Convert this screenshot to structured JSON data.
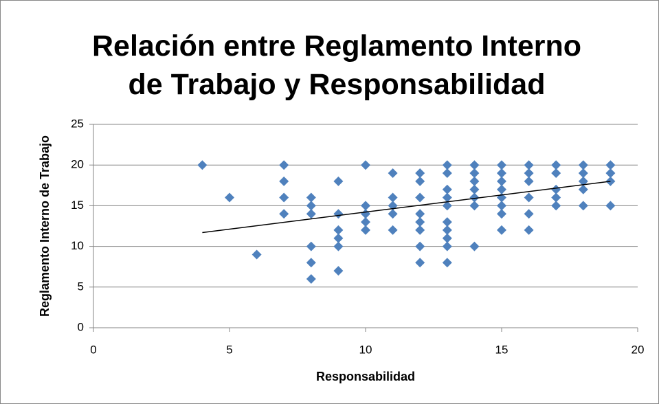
{
  "chart_data": {
    "type": "scatter",
    "title": [
      "Relación entre Reglamento Interno",
      "de Trabajo y Responsabilidad"
    ],
    "x_label": "Responsabilidad",
    "y_label": "Reglamento Interno de Trabajo",
    "color": "#4f81bd",
    "x": [
      4,
      5,
      6,
      7,
      7,
      7,
      7,
      8,
      8,
      8,
      8,
      8,
      8,
      9,
      9,
      9,
      9,
      9,
      9,
      10,
      10,
      10,
      10,
      10,
      11,
      11,
      11,
      11,
      11,
      12,
      12,
      12,
      12,
      12,
      12,
      12,
      12,
      13,
      13,
      13,
      13,
      13,
      13,
      13,
      13,
      13,
      13,
      14,
      14,
      14,
      14,
      14,
      14,
      14,
      15,
      15,
      15,
      15,
      15,
      15,
      15,
      15,
      16,
      16,
      16,
      16,
      16,
      16,
      17,
      17,
      17,
      17,
      17,
      18,
      18,
      18,
      18,
      18,
      19,
      19,
      19,
      19
    ],
    "y": [
      20,
      16,
      9,
      20,
      18,
      16,
      14,
      16,
      15,
      14,
      10,
      8,
      6,
      18,
      14,
      12,
      11,
      10,
      7,
      20,
      15,
      14,
      13,
      12,
      19,
      16,
      15,
      14,
      12,
      19,
      18,
      16,
      14,
      13,
      12,
      10,
      8,
      20,
      19,
      17,
      16,
      15,
      13,
      12,
      11,
      10,
      8,
      20,
      19,
      18,
      17,
      16,
      15,
      10,
      20,
      19,
      18,
      17,
      16,
      15,
      14,
      12,
      20,
      19,
      18,
      16,
      14,
      12,
      20,
      19,
      17,
      16,
      15,
      20,
      19,
      18,
      17,
      15,
      20,
      19,
      18,
      15
    ],
    "trendline": {
      "color": "#000000",
      "x": [
        4,
        19
      ],
      "y": [
        11.7,
        18
      ]
    },
    "xlim": [
      0,
      20
    ],
    "xticks": [
      0,
      5,
      10,
      15,
      20
    ],
    "ylim": [
      0,
      25
    ],
    "yticks": [
      0,
      5,
      10,
      15,
      20,
      25
    ],
    "grid": true
  }
}
